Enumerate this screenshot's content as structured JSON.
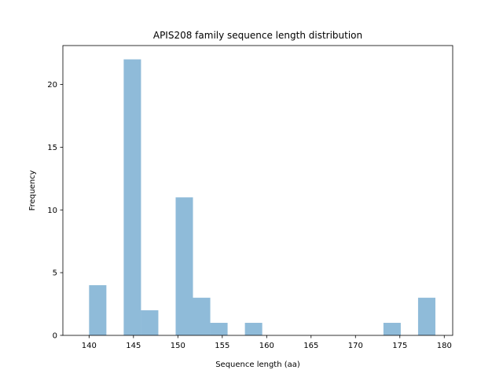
{
  "chart_data": {
    "type": "bar",
    "title": "APIS208 family sequence length distribution",
    "xlabel": "Sequence length (aa)",
    "ylabel": "Frequency",
    "xlim": [
      137.05,
      180.95
    ],
    "ylim": [
      0,
      23.1
    ],
    "xticks": [
      140,
      145,
      150,
      155,
      160,
      165,
      170,
      175,
      180
    ],
    "yticks": [
      0,
      5,
      10,
      15,
      20
    ],
    "bins": [
      {
        "start": 140.0,
        "end": 141.95,
        "count": 4
      },
      {
        "start": 141.95,
        "end": 143.9,
        "count": 0
      },
      {
        "start": 143.9,
        "end": 145.85,
        "count": 22
      },
      {
        "start": 145.85,
        "end": 147.8,
        "count": 2
      },
      {
        "start": 147.8,
        "end": 149.75,
        "count": 0
      },
      {
        "start": 149.75,
        "end": 151.7,
        "count": 11
      },
      {
        "start": 151.7,
        "end": 153.65,
        "count": 3
      },
      {
        "start": 153.65,
        "end": 155.6,
        "count": 1
      },
      {
        "start": 155.6,
        "end": 157.55,
        "count": 0
      },
      {
        "start": 157.55,
        "end": 159.5,
        "count": 1
      },
      {
        "start": 159.5,
        "end": 161.45,
        "count": 0
      },
      {
        "start": 161.45,
        "end": 163.4,
        "count": 0
      },
      {
        "start": 163.4,
        "end": 165.35,
        "count": 0
      },
      {
        "start": 165.35,
        "end": 167.3,
        "count": 0
      },
      {
        "start": 167.3,
        "end": 169.25,
        "count": 0
      },
      {
        "start": 169.25,
        "end": 171.2,
        "count": 0
      },
      {
        "start": 171.2,
        "end": 173.15,
        "count": 0
      },
      {
        "start": 173.15,
        "end": 175.1,
        "count": 1
      },
      {
        "start": 175.1,
        "end": 177.05,
        "count": 0
      },
      {
        "start": 177.05,
        "end": 179.0,
        "count": 3
      }
    ],
    "bar_color": "#1f77b4",
    "bar_alpha": 0.5,
    "grid": false,
    "legend": "none"
  }
}
